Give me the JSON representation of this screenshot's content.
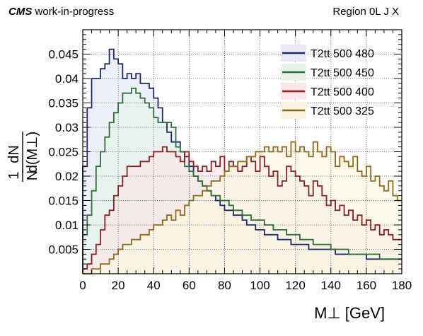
{
  "header": {
    "experiment": "CMS",
    "status": "work-in-progress",
    "region": "Region  0L  J  X"
  },
  "chart_data": {
    "type": "area",
    "histtype": "step-filled",
    "xlabel": "M⊥ [GeV]",
    "ylabel_numerator": "1",
    "ylabel_denominator": "N",
    "ylabel_deriv_top": "dN",
    "ylabel_deriv_bottom": "d(M⊥)",
    "xlim": [
      0,
      180
    ],
    "ylim": [
      0,
      0.05
    ],
    "xticks": [
      0,
      20,
      40,
      60,
      80,
      100,
      120,
      140,
      160,
      180
    ],
    "xtick_labels": [
      "0",
      "20",
      "40",
      "60",
      "80",
      "100",
      "120",
      "140",
      "160",
      "180"
    ],
    "yticks": [
      0.005,
      0.01,
      0.015,
      0.02,
      0.025,
      0.03,
      0.035,
      0.04,
      0.045
    ],
    "ytick_labels": [
      "0.005",
      "0.01",
      "0.015",
      "0.02",
      "0.025",
      "0.03",
      "0.035",
      "0.04",
      "0.045"
    ],
    "grid": true,
    "legend_position": "top-right",
    "bin_width": 2.5,
    "bin_centers_from": 1.25,
    "series": [
      {
        "name": "T2tt 500 480",
        "color": "#1f2a6b",
        "fill": "#e6e9f8",
        "values": [
          0.022,
          0.034,
          0.04,
          0.04,
          0.042,
          0.043,
          0.046,
          0.044,
          0.043,
          0.04,
          0.041,
          0.04,
          0.041,
          0.039,
          0.039,
          0.038,
          0.036,
          0.034,
          0.031,
          0.029,
          0.027,
          0.027,
          0.025,
          0.024,
          0.022,
          0.02,
          0.019,
          0.018,
          0.017,
          0.016,
          0.015,
          0.014,
          0.013,
          0.013,
          0.012,
          0.012,
          0.011,
          0.01,
          0.01,
          0.009,
          0.009,
          0.008,
          0.008,
          0.008,
          0.007,
          0.007,
          0.007,
          0.006,
          0.006,
          0.006,
          0.006,
          0.005,
          0.005,
          0.005,
          0.005,
          0.005,
          0.005,
          0.004,
          0.004,
          0.004,
          0.004,
          0.004,
          0.004,
          0.004,
          0.003,
          0.003,
          0.003,
          0.003,
          0.003,
          0.003,
          0.003,
          0.003
        ]
      },
      {
        "name": "T2tt 500 450",
        "color": "#2e6e3a",
        "fill": "#e6f4e8",
        "values": [
          0.008,
          0.012,
          0.017,
          0.022,
          0.025,
          0.028,
          0.031,
          0.033,
          0.035,
          0.037,
          0.037,
          0.038,
          0.037,
          0.036,
          0.035,
          0.034,
          0.032,
          0.031,
          0.031,
          0.031,
          0.03,
          0.026,
          0.025,
          0.022,
          0.021,
          0.02,
          0.019,
          0.018,
          0.017,
          0.016,
          0.016,
          0.015,
          0.015,
          0.014,
          0.013,
          0.013,
          0.012,
          0.012,
          0.011,
          0.011,
          0.011,
          0.01,
          0.01,
          0.009,
          0.009,
          0.009,
          0.008,
          0.008,
          0.008,
          0.007,
          0.007,
          0.007,
          0.006,
          0.006,
          0.006,
          0.006,
          0.005,
          0.005,
          0.005,
          0.005,
          0.004,
          0.004,
          0.004,
          0.004,
          0.004,
          0.004,
          0.004,
          0.003,
          0.003,
          0.003,
          0.003,
          0.003
        ]
      },
      {
        "name": "T2tt 500 400",
        "color": "#8b1f24",
        "fill": "#fae6e6",
        "values": [
          0.001,
          0.002,
          0.004,
          0.006,
          0.009,
          0.012,
          0.013,
          0.016,
          0.018,
          0.02,
          0.022,
          0.022,
          0.022,
          0.023,
          0.023,
          0.024,
          0.025,
          0.025,
          0.026,
          0.025,
          0.025,
          0.024,
          0.023,
          0.025,
          0.023,
          0.022,
          0.021,
          0.022,
          0.021,
          0.023,
          0.022,
          0.024,
          0.021,
          0.023,
          0.022,
          0.021,
          0.022,
          0.024,
          0.023,
          0.021,
          0.024,
          0.022,
          0.02,
          0.021,
          0.018,
          0.019,
          0.022,
          0.021,
          0.02,
          0.019,
          0.018,
          0.016,
          0.019,
          0.018,
          0.016,
          0.014,
          0.015,
          0.013,
          0.014,
          0.012,
          0.013,
          0.011,
          0.012,
          0.01,
          0.011,
          0.009,
          0.01,
          0.008,
          0.009,
          0.008,
          0.007,
          0.007
        ]
      },
      {
        "name": "T2tt 500 325",
        "color": "#8d6a1c",
        "fill": "#fbf6e3",
        "values": [
          0.0,
          0.0,
          0.001,
          0.001,
          0.002,
          0.002,
          0.003,
          0.004,
          0.005,
          0.006,
          0.006,
          0.007,
          0.007,
          0.008,
          0.008,
          0.009,
          0.01,
          0.01,
          0.011,
          0.012,
          0.011,
          0.013,
          0.012,
          0.014,
          0.015,
          0.016,
          0.016,
          0.017,
          0.018,
          0.019,
          0.019,
          0.02,
          0.021,
          0.022,
          0.022,
          0.023,
          0.023,
          0.024,
          0.024,
          0.025,
          0.025,
          0.026,
          0.025,
          0.026,
          0.025,
          0.026,
          0.024,
          0.027,
          0.025,
          0.026,
          0.025,
          0.024,
          0.027,
          0.025,
          0.024,
          0.026,
          0.025,
          0.022,
          0.024,
          0.023,
          0.022,
          0.024,
          0.021,
          0.02,
          0.022,
          0.019,
          0.02,
          0.018,
          0.017,
          0.019,
          0.016,
          0.015
        ]
      }
    ]
  }
}
